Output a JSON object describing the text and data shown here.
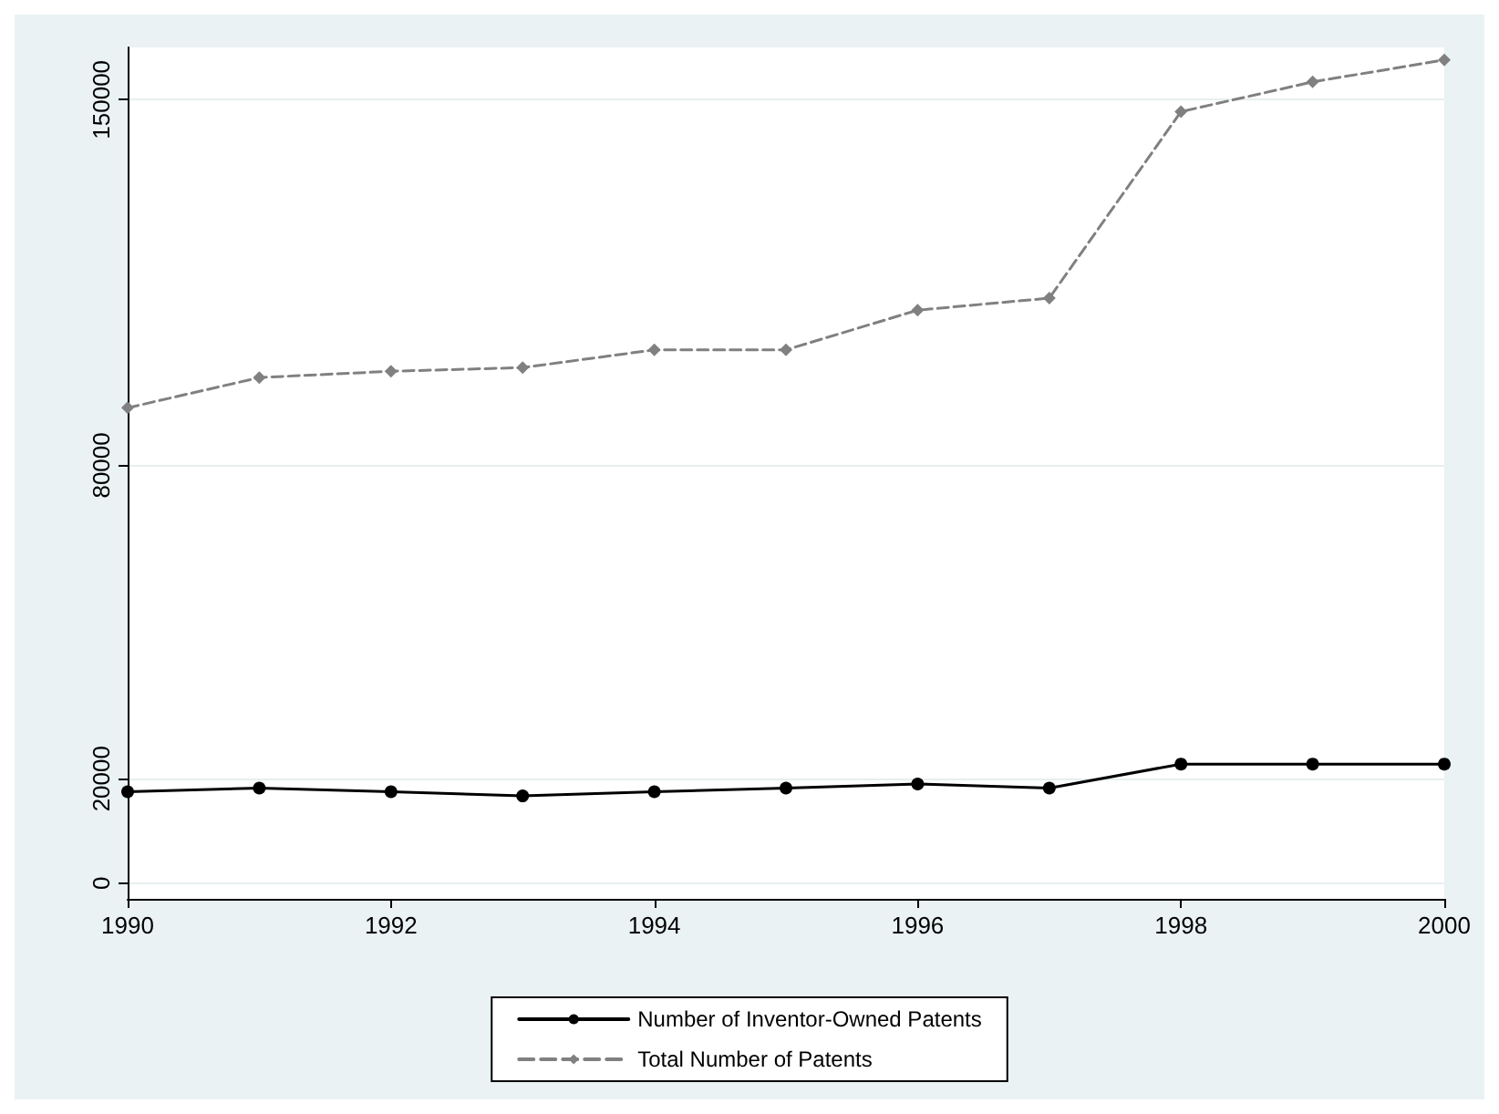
{
  "chart_data": {
    "type": "line",
    "x": [
      1990,
      1991,
      1992,
      1993,
      1994,
      1995,
      1996,
      1997,
      1998,
      1999,
      2000
    ],
    "series": [
      {
        "name": "Number of Inventor-Owned Patents",
        "color": "#000000",
        "marker": "circle",
        "line_style": "solid",
        "values": [
          17500,
          18200,
          17500,
          16700,
          17500,
          18200,
          19000,
          18200,
          22800,
          22800,
          22800
        ]
      },
      {
        "name": "Total Number of Patents",
        "color": "#808080",
        "marker": "diamond",
        "line_style": "dashed",
        "values": [
          91000,
          96800,
          98000,
          98700,
          102100,
          102100,
          109700,
          112000,
          147700,
          153400,
          157600
        ]
      }
    ],
    "xlim": [
      1990,
      2000
    ],
    "xticks": [
      1990,
      1992,
      1994,
      1996,
      1998,
      2000
    ],
    "ylim": [
      -3000,
      160000
    ],
    "yticks": [
      0,
      20000,
      80000,
      150000
    ],
    "grid": "y",
    "legend": "bottom"
  }
}
